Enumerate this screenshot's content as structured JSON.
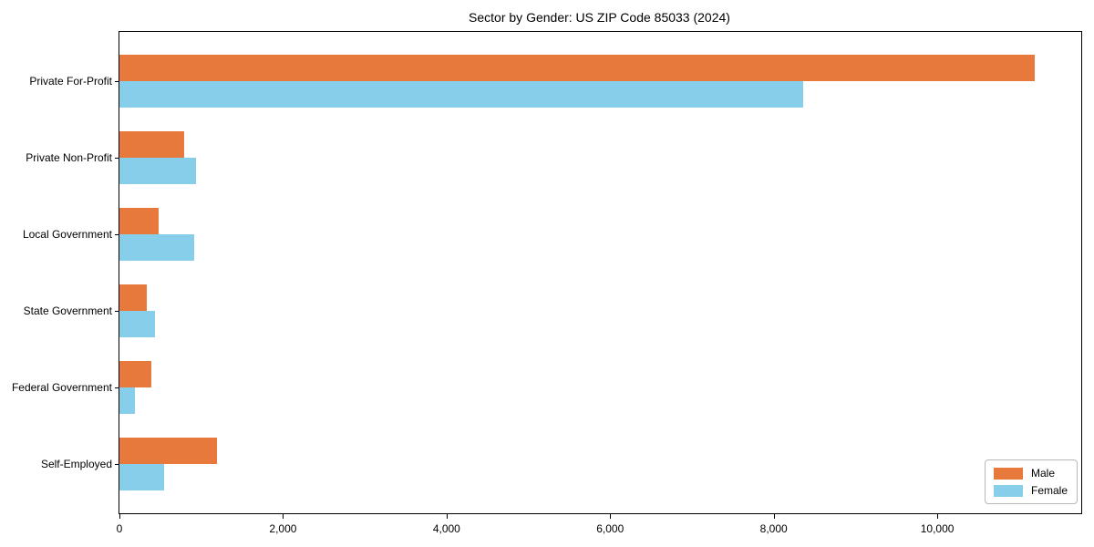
{
  "title": "Sector by Gender: US ZIP Code 85033 (2024)",
  "colors": {
    "male": "#E8793D",
    "female": "#87CEEB",
    "axis": "#000000",
    "legend_border": "#b8b8b8",
    "background": "#ffffff"
  },
  "chart_data": {
    "type": "bar",
    "orientation": "horizontal",
    "title": "Sector by Gender: US ZIP Code 85033 (2024)",
    "categories": [
      "Private For-Profit",
      "Private Non-Profit",
      "Local Government",
      "State Government",
      "Federal Government",
      "Self-Employed"
    ],
    "series": [
      {
        "name": "Male",
        "color": "#E8793D",
        "values": [
          11190,
          790,
          480,
          330,
          390,
          1190
        ]
      },
      {
        "name": "Female",
        "color": "#87CEEB",
        "values": [
          8360,
          940,
          910,
          430,
          190,
          550
        ]
      }
    ],
    "xlabel": "",
    "ylabel": "",
    "xlim": [
      0,
      11760
    ],
    "x_ticks": [
      0,
      2000,
      4000,
      6000,
      8000,
      10000
    ],
    "x_tick_labels": [
      "0",
      "2,000",
      "4,000",
      "6,000",
      "8,000",
      "10,000"
    ],
    "grid": false,
    "legend_position": "lower right"
  }
}
